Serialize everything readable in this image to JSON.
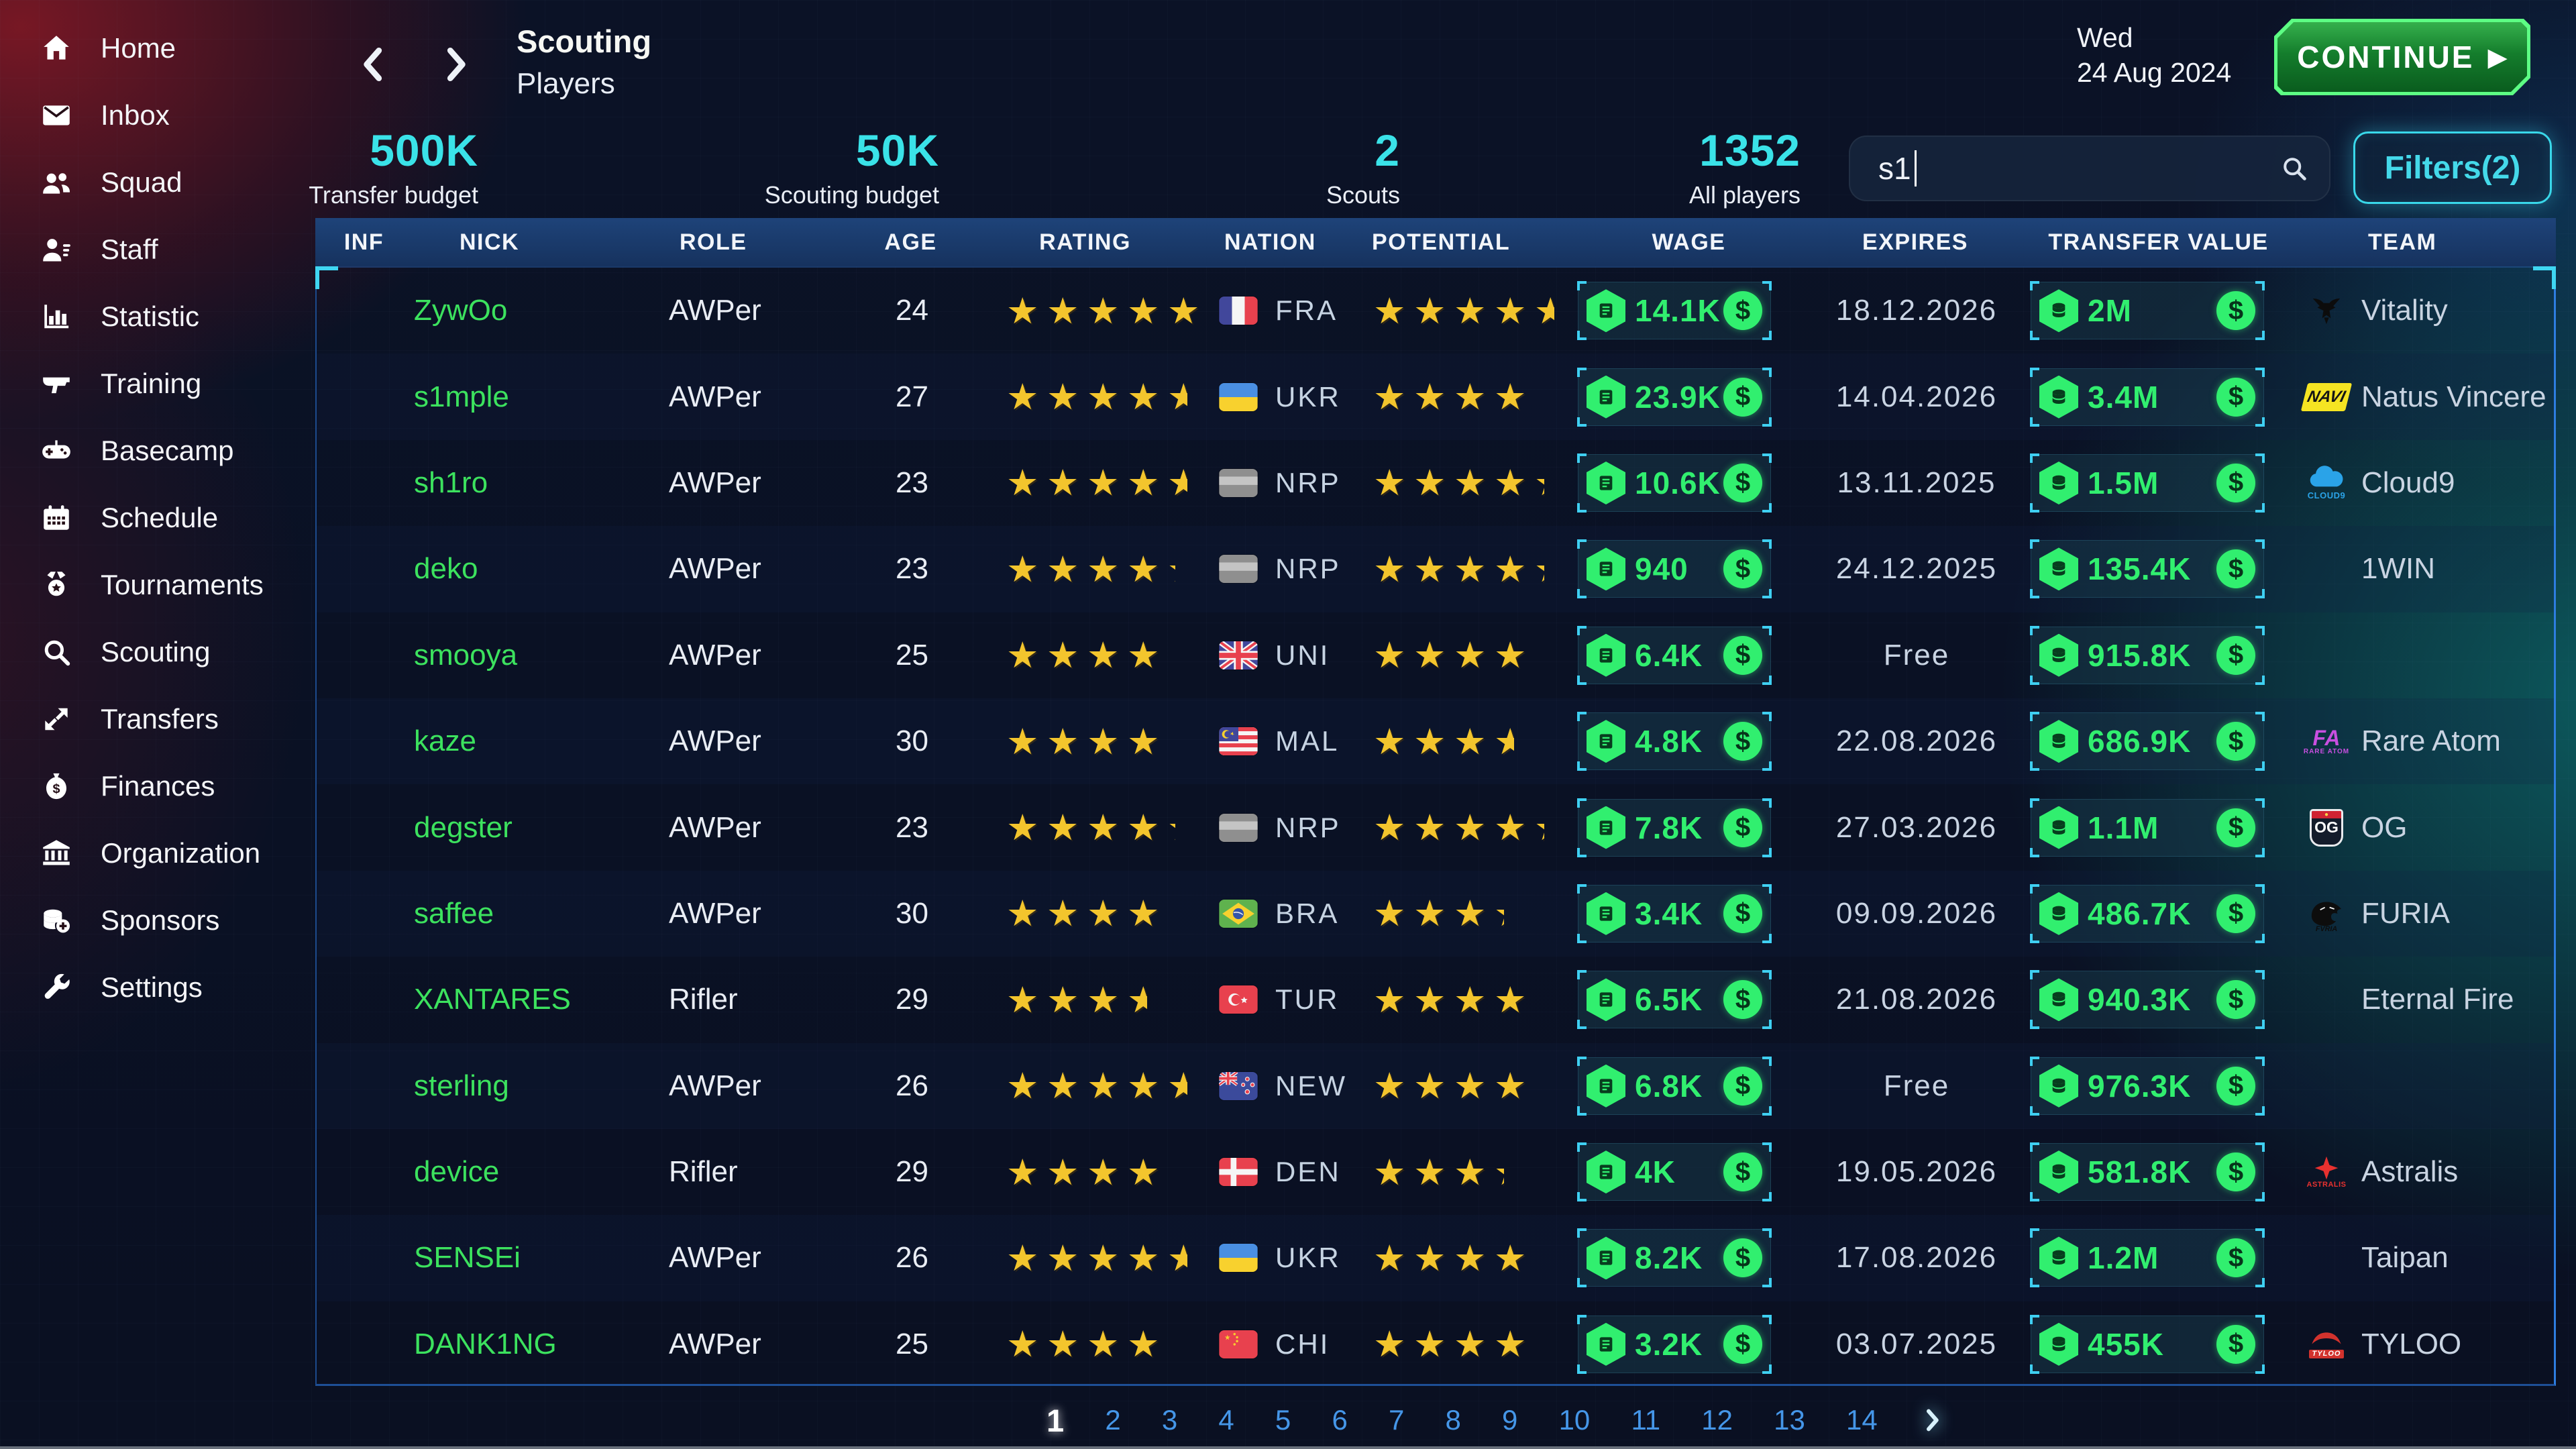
{
  "sidebar": {
    "items": [
      {
        "label": "Home",
        "icon": "home-icon"
      },
      {
        "label": "Inbox",
        "icon": "inbox-envelope-icon"
      },
      {
        "label": "Squad",
        "icon": "squad-users-icon"
      },
      {
        "label": "Staff",
        "icon": "staff-person-list-icon"
      },
      {
        "label": "Statistic",
        "icon": "bar-chart-icon"
      },
      {
        "label": "Training",
        "icon": "gun-icon"
      },
      {
        "label": "Basecamp",
        "icon": "gamepad-icon"
      },
      {
        "label": "Schedule",
        "icon": "calendar-icon"
      },
      {
        "label": "Tournaments",
        "icon": "medal-icon"
      },
      {
        "label": "Scouting",
        "icon": "magnifier-icon"
      },
      {
        "label": "Transfers",
        "icon": "transfer-arrows-icon"
      },
      {
        "label": "Finances",
        "icon": "money-bag-icon"
      },
      {
        "label": "Organization",
        "icon": "bank-icon"
      },
      {
        "label": "Sponsors",
        "icon": "coins-plus-icon"
      },
      {
        "label": "Settings",
        "icon": "wrench-icon"
      }
    ]
  },
  "header": {
    "title": "Scouting",
    "subtitle": "Players",
    "date_line1": "Wed",
    "date_line2": "24 Aug 2024",
    "continue_label": "CONTINUE",
    "continue_play_icon": "play-icon",
    "back_icon": "chevron-left-icon",
    "forward_icon": "chevron-right-icon"
  },
  "stats": [
    {
      "value": "500K",
      "label": "Transfer budget"
    },
    {
      "value": "50K",
      "label": "Scouting budget"
    },
    {
      "value": "2",
      "label": "Scouts"
    },
    {
      "value": "1352",
      "label": "All players"
    }
  ],
  "search": {
    "value": "s1",
    "icon": "search-icon"
  },
  "filters_label": "Filters(2)",
  "table": {
    "columns": [
      "INF",
      "NICK",
      "ROLE",
      "AGE",
      "RATING",
      "NATION",
      "POTENTIAL",
      "WAGE",
      "EXPIRES",
      "TRANSFER VALUE",
      "TEAM"
    ],
    "rows": [
      {
        "nick": "ZywOo",
        "role": "AWPer",
        "age": "24",
        "rating": 4.9,
        "nation": "FRA",
        "potential": 4.5,
        "wage": "14.1K",
        "expires": "18.12.2026",
        "transfer_value": "2M",
        "team": "Vitality"
      },
      {
        "nick": "s1mple",
        "role": "AWPer",
        "age": "27",
        "rating": 4.5,
        "nation": "UKR",
        "potential": 4,
        "wage": "23.9K",
        "expires": "14.04.2026",
        "transfer_value": "3.4M",
        "team": "Natus Vincere"
      },
      {
        "nick": "sh1ro",
        "role": "AWPer",
        "age": "23",
        "rating": 4.5,
        "nation": "NRP",
        "potential": 4.25,
        "wage": "10.6K",
        "expires": "13.11.2025",
        "transfer_value": "1.5M",
        "team": "Cloud9"
      },
      {
        "nick": "deko",
        "role": "AWPer",
        "age": "23",
        "rating": 4.2,
        "nation": "NRP",
        "potential": 4.25,
        "wage": "940",
        "expires": "24.12.2025",
        "transfer_value": "135.4K",
        "team": "1WIN"
      },
      {
        "nick": "smooya",
        "role": "AWPer",
        "age": "25",
        "rating": 4,
        "nation": "UNI",
        "potential": 4,
        "wage": "6.4K",
        "expires": "Free",
        "transfer_value": "915.8K",
        "team": ""
      },
      {
        "nick": "kaze",
        "role": "AWPer",
        "age": "30",
        "rating": 4,
        "nation": "MAL",
        "potential": 3.5,
        "wage": "4.8K",
        "expires": "22.08.2026",
        "transfer_value": "686.9K",
        "team": "Rare Atom"
      },
      {
        "nick": "degster",
        "role": "AWPer",
        "age": "23",
        "rating": 4.2,
        "nation": "NRP",
        "potential": 4.25,
        "wage": "7.8K",
        "expires": "27.03.2026",
        "transfer_value": "1.1M",
        "team": "OG"
      },
      {
        "nick": "saffee",
        "role": "AWPer",
        "age": "30",
        "rating": 4,
        "nation": "BRA",
        "potential": 3.25,
        "wage": "3.4K",
        "expires": "09.09.2026",
        "transfer_value": "486.7K",
        "team": "FURIA"
      },
      {
        "nick": "XANTARES",
        "role": "Rifler",
        "age": "29",
        "rating": 3.5,
        "nation": "TUR",
        "potential": 4,
        "wage": "6.5K",
        "expires": "21.08.2026",
        "transfer_value": "940.3K",
        "team": "Eternal Fire"
      },
      {
        "nick": "sterling",
        "role": "AWPer",
        "age": "26",
        "rating": 4.5,
        "nation": "NEW",
        "potential": 4,
        "wage": "6.8K",
        "expires": "Free",
        "transfer_value": "976.3K",
        "team": ""
      },
      {
        "nick": "device",
        "role": "Rifler",
        "age": "29",
        "rating": 4,
        "nation": "DEN",
        "potential": 3.25,
        "wage": "4K",
        "expires": "19.05.2026",
        "transfer_value": "581.8K",
        "team": "Astralis"
      },
      {
        "nick": "SENSEi",
        "role": "AWPer",
        "age": "26",
        "rating": 4.5,
        "nation": "UKR",
        "potential": 4,
        "wage": "8.2K",
        "expires": "17.08.2026",
        "transfer_value": "1.2M",
        "team": "Taipan"
      },
      {
        "nick": "DANK1NG",
        "role": "AWPer",
        "age": "25",
        "rating": 4,
        "nation": "CHI",
        "potential": 4,
        "wage": "3.2K",
        "expires": "03.07.2025",
        "transfer_value": "455K",
        "team": "TYLOO"
      }
    ],
    "wage_icon": "bill-hexagon-icon",
    "transfer_value_icon": "coins-hexagon-icon",
    "dollar_icon": "dollar-icon",
    "star_icon": "star-icon"
  },
  "team_logos": {
    "Vitality": "vitality-bee-logo-icon",
    "Natus Vincere": "navi-logo-icon",
    "Cloud9": "cloud9-logo-icon",
    "Rare Atom": "rare-atom-logo-icon",
    "OG": "og-shield-logo-icon",
    "FURIA": "furia-panther-logo-icon",
    "Astralis": "astralis-star-logo-icon",
    "TYLOO": "tyloo-dragon-logo-icon"
  },
  "pagination": {
    "pages": [
      "1",
      "2",
      "3",
      "4",
      "5",
      "6",
      "7",
      "8",
      "9",
      "10",
      "11",
      "12",
      "13",
      "14"
    ],
    "current": "1",
    "next_icon": "chevron-right-icon"
  },
  "colors": {
    "accent_cyan": "#3ae2e8",
    "nick_green": "#3ce25e",
    "money_green": "#31ef6f",
    "star_gold": "#f3c52d",
    "page_blue": "#4596e8",
    "table_header_blue": "#1c3e72",
    "continue_green": "#147d2c",
    "continue_border_green": "#5dff84",
    "sidebar_red_glow": "#801824",
    "teal_glow": "#0e968c"
  }
}
